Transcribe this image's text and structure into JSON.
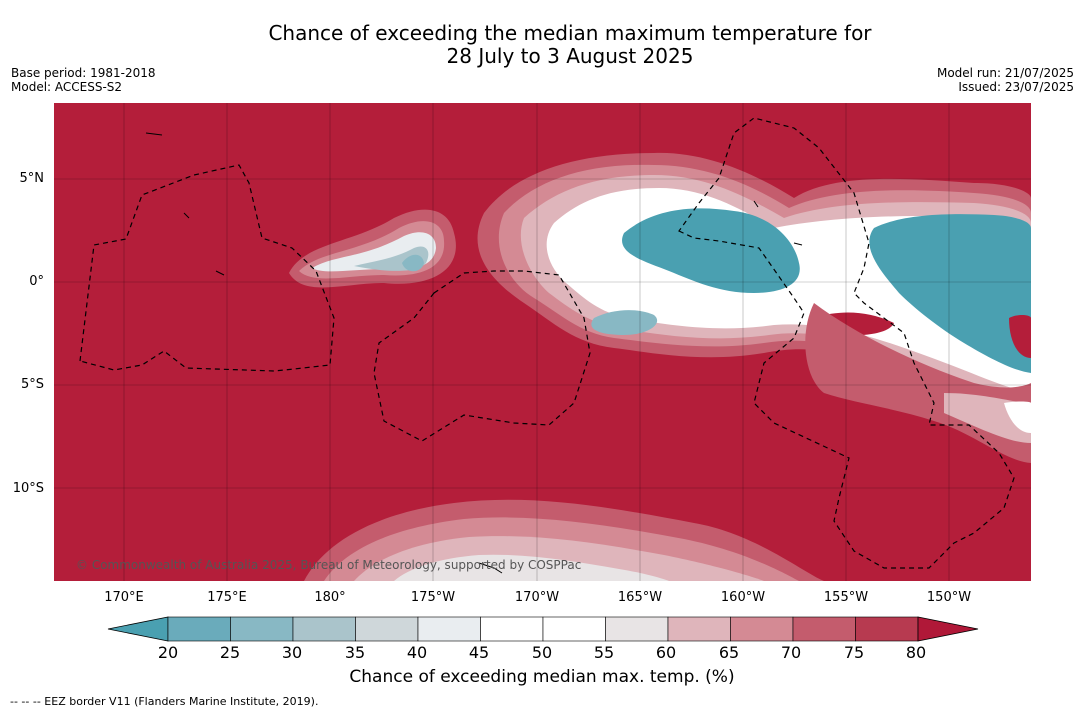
{
  "title_line1": "Chance of exceeding the median maximum temperature for",
  "title_line2": "28 July to 3 August 2025",
  "base_period": "Base period: 1981-2018",
  "model": "Model: ACCESS-S2",
  "model_run": "Model run: 21/07/2025",
  "issued": "Issued: 23/07/2025",
  "copyright": "© Commonwealth of Australia 2025, Bureau of Meteorology, supported by COSPPac",
  "lat_labels": [
    "5°N",
    "0°",
    "5°S",
    "10°S"
  ],
  "lon_labels": [
    "170°E",
    "175°E",
    "180°",
    "175°W",
    "170°W",
    "165°W",
    "160°W",
    "155°W",
    "150°W"
  ],
  "colorbar": {
    "ticks": [
      "20",
      "25",
      "30",
      "35",
      "40",
      "45",
      "50",
      "55",
      "60",
      "65",
      "70",
      "75",
      "80"
    ],
    "colors": [
      "#4aa0b1",
      "#6aabbb",
      "#88b8c4",
      "#aac4cb",
      "#cfd7da",
      "#e9edf0",
      "#ffffff",
      "#ffffff",
      "#e8e4e5",
      "#dfb5bb",
      "#d48a94",
      "#c45c6d",
      "#b73a50",
      "#b01838"
    ],
    "label": "Chance of exceeding median max. temp. (%)"
  },
  "eez_note": "--  --  -- EEZ border V11 (Flanders Marine Institute, 2019)."
}
